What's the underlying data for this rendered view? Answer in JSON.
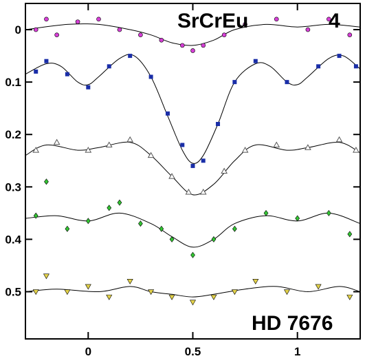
{
  "chart_data": {
    "type": "scatter",
    "title": "",
    "xlabel": "",
    "ylabel": "",
    "xlim": [
      -0.3,
      1.3
    ],
    "ylim": [
      0.59,
      -0.05
    ],
    "y_inverted": true,
    "grid": false,
    "x_ticks": [
      0,
      0.5,
      1
    ],
    "x_tick_labels": [
      "0",
      "0.5",
      "1"
    ],
    "y_ticks": [
      0,
      0.1,
      0.2,
      0.3,
      0.4,
      0.5
    ],
    "y_tick_labels": [
      "0",
      "0.1",
      "0.2",
      "0.3",
      "0.4",
      "0.5"
    ],
    "annotations": {
      "peculiarity": "SrCrEu",
      "panel_number": "4",
      "star": "HD 7676"
    },
    "series": [
      {
        "marker": "circle",
        "color": "#d63fd6",
        "fit_curve": [
          {
            "x": -0.3,
            "y": 0.0
          },
          {
            "x": -0.1,
            "y": -0.01
          },
          {
            "x": 0.05,
            "y": -0.01
          },
          {
            "x": 0.2,
            "y": 0.0
          },
          {
            "x": 0.3,
            "y": 0.01
          },
          {
            "x": 0.4,
            "y": 0.025
          },
          {
            "x": 0.5,
            "y": 0.03
          },
          {
            "x": 0.6,
            "y": 0.02
          },
          {
            "x": 0.7,
            "y": 0.0
          },
          {
            "x": 0.85,
            "y": -0.01
          },
          {
            "x": 1.0,
            "y": -0.005
          },
          {
            "x": 1.15,
            "y": -0.01
          },
          {
            "x": 1.3,
            "y": -0.005
          }
        ],
        "points_sample": [
          {
            "x": -0.25,
            "y": 0.0
          },
          {
            "x": -0.2,
            "y": -0.02
          },
          {
            "x": -0.15,
            "y": 0.01
          },
          {
            "x": -0.05,
            "y": -0.015
          },
          {
            "x": 0.05,
            "y": -0.02
          },
          {
            "x": 0.15,
            "y": 0.0
          },
          {
            "x": 0.25,
            "y": 0.01
          },
          {
            "x": 0.35,
            "y": 0.02
          },
          {
            "x": 0.45,
            "y": 0.03
          },
          {
            "x": 0.5,
            "y": 0.04
          },
          {
            "x": 0.55,
            "y": 0.03
          },
          {
            "x": 0.65,
            "y": 0.01
          },
          {
            "x": 0.75,
            "y": -0.01
          },
          {
            "x": 0.9,
            "y": -0.02
          },
          {
            "x": 1.05,
            "y": 0.0
          },
          {
            "x": 1.15,
            "y": -0.02
          },
          {
            "x": 1.25,
            "y": 0.01
          }
        ]
      },
      {
        "marker": "square",
        "color": "#1a2ea8",
        "fit_curve": [
          {
            "x": -0.3,
            "y": 0.085
          },
          {
            "x": -0.2,
            "y": 0.065
          },
          {
            "x": -0.13,
            "y": 0.07
          },
          {
            "x": -0.05,
            "y": 0.1
          },
          {
            "x": 0.0,
            "y": 0.105
          },
          {
            "x": 0.05,
            "y": 0.09
          },
          {
            "x": 0.15,
            "y": 0.055
          },
          {
            "x": 0.22,
            "y": 0.05
          },
          {
            "x": 0.3,
            "y": 0.09
          },
          {
            "x": 0.38,
            "y": 0.165
          },
          {
            "x": 0.45,
            "y": 0.23
          },
          {
            "x": 0.5,
            "y": 0.255
          },
          {
            "x": 0.55,
            "y": 0.24
          },
          {
            "x": 0.62,
            "y": 0.18
          },
          {
            "x": 0.7,
            "y": 0.1
          },
          {
            "x": 0.8,
            "y": 0.065
          },
          {
            "x": 0.87,
            "y": 0.07
          },
          {
            "x": 0.95,
            "y": 0.1
          },
          {
            "x": 1.0,
            "y": 0.105
          },
          {
            "x": 1.05,
            "y": 0.09
          },
          {
            "x": 1.15,
            "y": 0.055
          },
          {
            "x": 1.22,
            "y": 0.05
          },
          {
            "x": 1.3,
            "y": 0.075
          }
        ],
        "points_sample": [
          {
            "x": -0.25,
            "y": 0.08
          },
          {
            "x": -0.2,
            "y": 0.06
          },
          {
            "x": -0.1,
            "y": 0.085
          },
          {
            "x": 0.0,
            "y": 0.11
          },
          {
            "x": 0.1,
            "y": 0.07
          },
          {
            "x": 0.2,
            "y": 0.05
          },
          {
            "x": 0.3,
            "y": 0.09
          },
          {
            "x": 0.38,
            "y": 0.16
          },
          {
            "x": 0.45,
            "y": 0.22
          },
          {
            "x": 0.5,
            "y": 0.26
          },
          {
            "x": 0.55,
            "y": 0.25
          },
          {
            "x": 0.62,
            "y": 0.18
          },
          {
            "x": 0.7,
            "y": 0.1
          },
          {
            "x": 0.8,
            "y": 0.06
          },
          {
            "x": 0.95,
            "y": 0.1
          },
          {
            "x": 1.1,
            "y": 0.07
          },
          {
            "x": 1.2,
            "y": 0.05
          },
          {
            "x": 1.28,
            "y": 0.07
          }
        ]
      },
      {
        "marker": "triangle-up",
        "color": "#555555",
        "fit_curve": [
          {
            "x": -0.3,
            "y": 0.24
          },
          {
            "x": -0.2,
            "y": 0.22
          },
          {
            "x": -0.05,
            "y": 0.23
          },
          {
            "x": 0.05,
            "y": 0.225
          },
          {
            "x": 0.2,
            "y": 0.215
          },
          {
            "x": 0.3,
            "y": 0.24
          },
          {
            "x": 0.4,
            "y": 0.28
          },
          {
            "x": 0.5,
            "y": 0.315
          },
          {
            "x": 0.6,
            "y": 0.295
          },
          {
            "x": 0.7,
            "y": 0.25
          },
          {
            "x": 0.8,
            "y": 0.22
          },
          {
            "x": 0.95,
            "y": 0.23
          },
          {
            "x": 1.05,
            "y": 0.225
          },
          {
            "x": 1.2,
            "y": 0.215
          },
          {
            "x": 1.3,
            "y": 0.235
          }
        ],
        "points_sample": [
          {
            "x": -0.25,
            "y": 0.23
          },
          {
            "x": -0.15,
            "y": 0.215
          },
          {
            "x": 0.0,
            "y": 0.23
          },
          {
            "x": 0.1,
            "y": 0.22
          },
          {
            "x": 0.2,
            "y": 0.21
          },
          {
            "x": 0.3,
            "y": 0.24
          },
          {
            "x": 0.4,
            "y": 0.28
          },
          {
            "x": 0.48,
            "y": 0.31
          },
          {
            "x": 0.55,
            "y": 0.31
          },
          {
            "x": 0.65,
            "y": 0.27
          },
          {
            "x": 0.75,
            "y": 0.23
          },
          {
            "x": 0.9,
            "y": 0.22
          },
          {
            "x": 1.05,
            "y": 0.225
          },
          {
            "x": 1.2,
            "y": 0.21
          },
          {
            "x": 1.28,
            "y": 0.23
          }
        ]
      },
      {
        "marker": "diamond",
        "color": "#33c433",
        "fit_curve": [
          {
            "x": -0.3,
            "y": 0.36
          },
          {
            "x": -0.15,
            "y": 0.355
          },
          {
            "x": 0.0,
            "y": 0.365
          },
          {
            "x": 0.15,
            "y": 0.35
          },
          {
            "x": 0.3,
            "y": 0.37
          },
          {
            "x": 0.4,
            "y": 0.395
          },
          {
            "x": 0.5,
            "y": 0.415
          },
          {
            "x": 0.6,
            "y": 0.4
          },
          {
            "x": 0.7,
            "y": 0.37
          },
          {
            "x": 0.85,
            "y": 0.355
          },
          {
            "x": 1.0,
            "y": 0.365
          },
          {
            "x": 1.15,
            "y": 0.35
          },
          {
            "x": 1.3,
            "y": 0.37
          }
        ],
        "points_sample": [
          {
            "x": -0.25,
            "y": 0.355
          },
          {
            "x": -0.2,
            "y": 0.29
          },
          {
            "x": -0.1,
            "y": 0.38
          },
          {
            "x": 0.0,
            "y": 0.365
          },
          {
            "x": 0.1,
            "y": 0.34
          },
          {
            "x": 0.15,
            "y": 0.33
          },
          {
            "x": 0.25,
            "y": 0.37
          },
          {
            "x": 0.35,
            "y": 0.38
          },
          {
            "x": 0.4,
            "y": 0.4
          },
          {
            "x": 0.5,
            "y": 0.43
          },
          {
            "x": 0.6,
            "y": 0.4
          },
          {
            "x": 0.7,
            "y": 0.38
          },
          {
            "x": 0.85,
            "y": 0.35
          },
          {
            "x": 1.0,
            "y": 0.36
          },
          {
            "x": 1.15,
            "y": 0.35
          },
          {
            "x": 1.25,
            "y": 0.39
          }
        ]
      },
      {
        "marker": "triangle-down",
        "color": "#e3d24a",
        "fit_curve": [
          {
            "x": -0.3,
            "y": 0.5
          },
          {
            "x": -0.15,
            "y": 0.495
          },
          {
            "x": 0.05,
            "y": 0.5
          },
          {
            "x": 0.2,
            "y": 0.49
          },
          {
            "x": 0.3,
            "y": 0.5
          },
          {
            "x": 0.4,
            "y": 0.505
          },
          {
            "x": 0.5,
            "y": 0.51
          },
          {
            "x": 0.6,
            "y": 0.505
          },
          {
            "x": 0.75,
            "y": 0.495
          },
          {
            "x": 0.9,
            "y": 0.49
          },
          {
            "x": 1.05,
            "y": 0.5
          },
          {
            "x": 1.2,
            "y": 0.49
          },
          {
            "x": 1.3,
            "y": 0.5
          }
        ],
        "points_sample": [
          {
            "x": -0.25,
            "y": 0.5
          },
          {
            "x": -0.2,
            "y": 0.47
          },
          {
            "x": -0.1,
            "y": 0.5
          },
          {
            "x": 0.0,
            "y": 0.49
          },
          {
            "x": 0.1,
            "y": 0.51
          },
          {
            "x": 0.2,
            "y": 0.48
          },
          {
            "x": 0.3,
            "y": 0.5
          },
          {
            "x": 0.4,
            "y": 0.51
          },
          {
            "x": 0.5,
            "y": 0.52
          },
          {
            "x": 0.6,
            "y": 0.51
          },
          {
            "x": 0.7,
            "y": 0.5
          },
          {
            "x": 0.8,
            "y": 0.48
          },
          {
            "x": 0.95,
            "y": 0.5
          },
          {
            "x": 1.1,
            "y": 0.49
          },
          {
            "x": 1.25,
            "y": 0.51
          }
        ]
      }
    ]
  }
}
